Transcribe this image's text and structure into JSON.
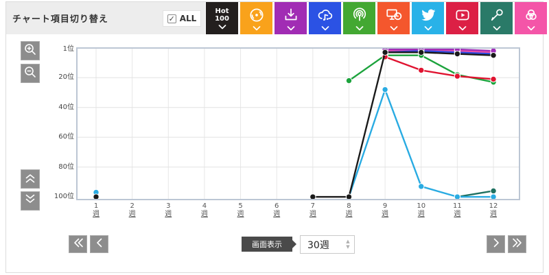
{
  "header": {
    "title": "チャート項目切り替え",
    "all_checkbox": {
      "label": "ALL",
      "checked": true,
      "checkmark": "✓"
    }
  },
  "toolbar": {
    "buttons": [
      {
        "name": "hot100",
        "label": "Hot\n100",
        "color": "#231f1e",
        "icon": "none"
      },
      {
        "name": "cd-sales",
        "label": "",
        "color": "#F9A21B",
        "icon": "disc"
      },
      {
        "name": "download",
        "label": "",
        "color": "#A12CB4",
        "icon": "download"
      },
      {
        "name": "streaming",
        "label": "",
        "color": "#2B52E4",
        "icon": "cloud-music"
      },
      {
        "name": "radio",
        "label": "",
        "color": "#43A832",
        "icon": "broadcast"
      },
      {
        "name": "lookup",
        "label": "",
        "color": "#F4572D",
        "icon": "monitor-disc"
      },
      {
        "name": "twitter",
        "label": "",
        "color": "#29B2E8",
        "icon": "twitter-bird"
      },
      {
        "name": "video",
        "label": "",
        "color": "#DC2045",
        "icon": "play"
      },
      {
        "name": "karaoke",
        "label": "",
        "color": "#2A7A68",
        "icon": "microphone"
      },
      {
        "name": "composite",
        "label": "",
        "color": "#F455A8",
        "icon": "venn"
      }
    ]
  },
  "chart_data": {
    "type": "line",
    "x_unit": "週",
    "weeks": [
      1,
      2,
      3,
      4,
      5,
      6,
      7,
      8,
      9,
      10,
      11,
      12
    ],
    "y_axis": {
      "inverted": true,
      "min": 1,
      "max": 100,
      "tick_ranks": [
        1,
        20,
        40,
        60,
        80,
        100
      ],
      "tick_labels": [
        "1位",
        "20位",
        "40位",
        "60位",
        "80位",
        "100位"
      ]
    },
    "grid": true,
    "series": [
      {
        "name": "karaoke",
        "color": "#1F7060",
        "points": {
          "11": 100,
          "12": 96
        }
      },
      {
        "name": "twitter",
        "color": "#29ABE2",
        "points": {
          "1": 97,
          "8": 100,
          "9": 28,
          "10": 93,
          "11": 100,
          "12": 100
        }
      },
      {
        "name": "radio",
        "color": "#1CA33C",
        "points": {
          "8": 22,
          "9": 5,
          "10": 5,
          "11": 18,
          "12": 23
        }
      },
      {
        "name": "video",
        "color": "#E01330",
        "points": {
          "9": 6,
          "10": 15,
          "11": 19,
          "12": 21
        }
      },
      {
        "name": "composite",
        "color": "#EF4FA8",
        "points": {
          "9": 2,
          "10": 1,
          "11": 2,
          "12": 3
        }
      },
      {
        "name": "streaming",
        "color": "#2B49E0",
        "points": {
          "9": 3,
          "10": 2,
          "11": 3,
          "12": 4
        }
      },
      {
        "name": "download",
        "color": "#A02CB8",
        "points": {
          "9": 1,
          "10": 1,
          "11": 1,
          "12": 2
        }
      },
      {
        "name": "hot100",
        "color": "#1a1a1a",
        "points": {
          "1": 100,
          "7": 100,
          "8": 100,
          "9": 3,
          "10": 3,
          "11": 4,
          "12": 5
        }
      }
    ]
  },
  "footer": {
    "display_label": "画面表示",
    "display_value": "30週"
  }
}
